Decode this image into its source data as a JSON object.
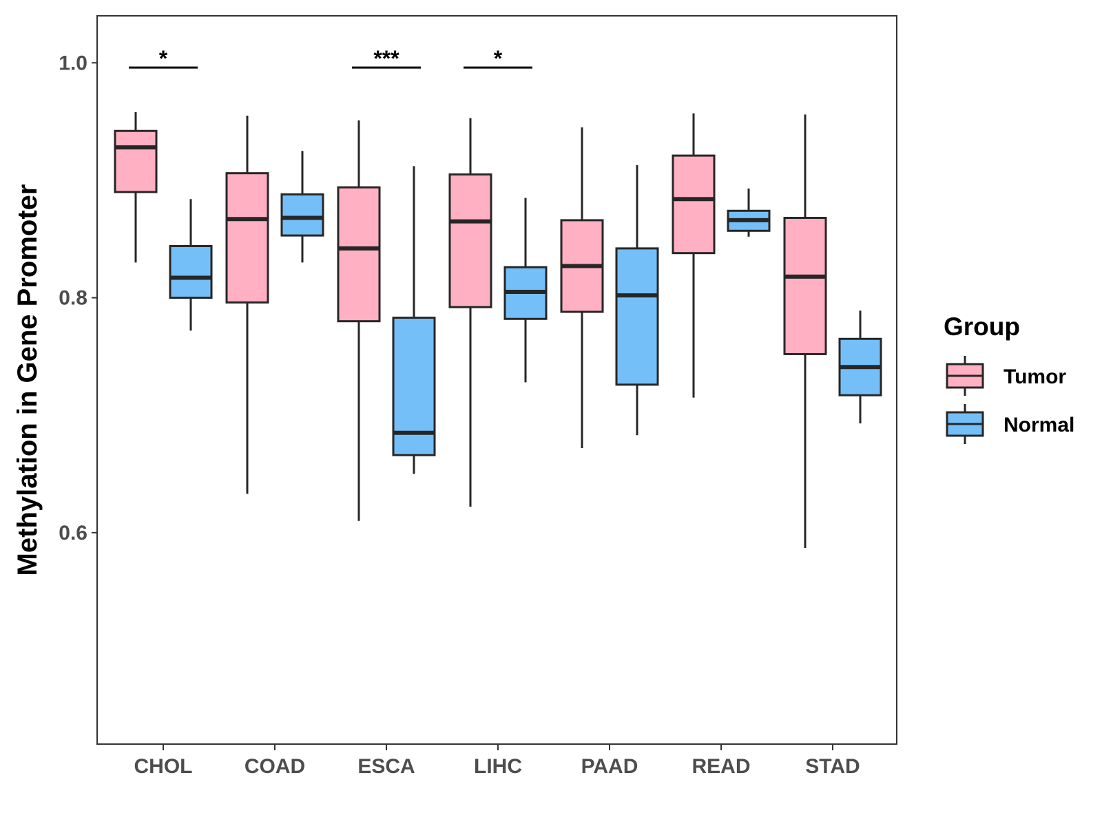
{
  "chart_data": {
    "type": "boxplot",
    "ylabel": "Methylation in Gene Promoter",
    "xlabel": "",
    "ylim": [
      0.42,
      1.04
    ],
    "y_ticks": [
      {
        "value": 0.6,
        "label": "0.6"
      },
      {
        "value": 0.8,
        "label": "0.8"
      },
      {
        "value": 1.0,
        "label": "1.0"
      }
    ],
    "categories": [
      "CHOL",
      "COAD",
      "ESCA",
      "LIHC",
      "PAAD",
      "READ",
      "STAD"
    ],
    "legend": {
      "title": "Group",
      "position": "right",
      "entries": [
        {
          "name": "Tumor",
          "color": "#FFB0C2"
        },
        {
          "name": "Normal",
          "color": "#75BFF9"
        }
      ]
    },
    "series": [
      {
        "name": "Tumor",
        "color": "#FFB0C2",
        "boxes": [
          {
            "category": "CHOL",
            "min": 0.83,
            "q1": 0.89,
            "median": 0.928,
            "q3": 0.942,
            "max": 0.958
          },
          {
            "category": "COAD",
            "min": 0.633,
            "q1": 0.796,
            "median": 0.867,
            "q3": 0.906,
            "max": 0.955
          },
          {
            "category": "ESCA",
            "min": 0.61,
            "q1": 0.78,
            "median": 0.842,
            "q3": 0.894,
            "max": 0.951
          },
          {
            "category": "LIHC",
            "min": 0.622,
            "q1": 0.792,
            "median": 0.865,
            "q3": 0.905,
            "max": 0.953
          },
          {
            "category": "PAAD",
            "min": 0.672,
            "q1": 0.788,
            "median": 0.827,
            "q3": 0.866,
            "max": 0.945
          },
          {
            "category": "READ",
            "min": 0.715,
            "q1": 0.838,
            "median": 0.884,
            "q3": 0.921,
            "max": 0.957
          },
          {
            "category": "STAD",
            "min": 0.587,
            "q1": 0.752,
            "median": 0.818,
            "q3": 0.868,
            "max": 0.956
          }
        ]
      },
      {
        "name": "Normal",
        "color": "#75BFF9",
        "boxes": [
          {
            "category": "CHOL",
            "min": 0.772,
            "q1": 0.8,
            "median": 0.817,
            "q3": 0.844,
            "max": 0.884
          },
          {
            "category": "COAD",
            "min": 0.83,
            "q1": 0.853,
            "median": 0.868,
            "q3": 0.888,
            "max": 0.925
          },
          {
            "category": "ESCA",
            "min": 0.65,
            "q1": 0.666,
            "median": 0.685,
            "q3": 0.783,
            "max": 0.912
          },
          {
            "category": "LIHC",
            "min": 0.728,
            "q1": 0.782,
            "median": 0.805,
            "q3": 0.826,
            "max": 0.885
          },
          {
            "category": "PAAD",
            "min": 0.683,
            "q1": 0.726,
            "median": 0.802,
            "q3": 0.842,
            "max": 0.913
          },
          {
            "category": "READ",
            "min": 0.852,
            "q1": 0.857,
            "median": 0.866,
            "q3": 0.874,
            "max": 0.893
          },
          {
            "category": "STAD",
            "min": 0.693,
            "q1": 0.717,
            "median": 0.741,
            "q3": 0.765,
            "max": 0.789
          }
        ]
      }
    ],
    "annotations": [
      {
        "category": "CHOL",
        "label": "*",
        "y": 0.996
      },
      {
        "category": "ESCA",
        "label": "***",
        "y": 0.996
      },
      {
        "category": "LIHC",
        "label": "*",
        "y": 0.996
      }
    ]
  }
}
